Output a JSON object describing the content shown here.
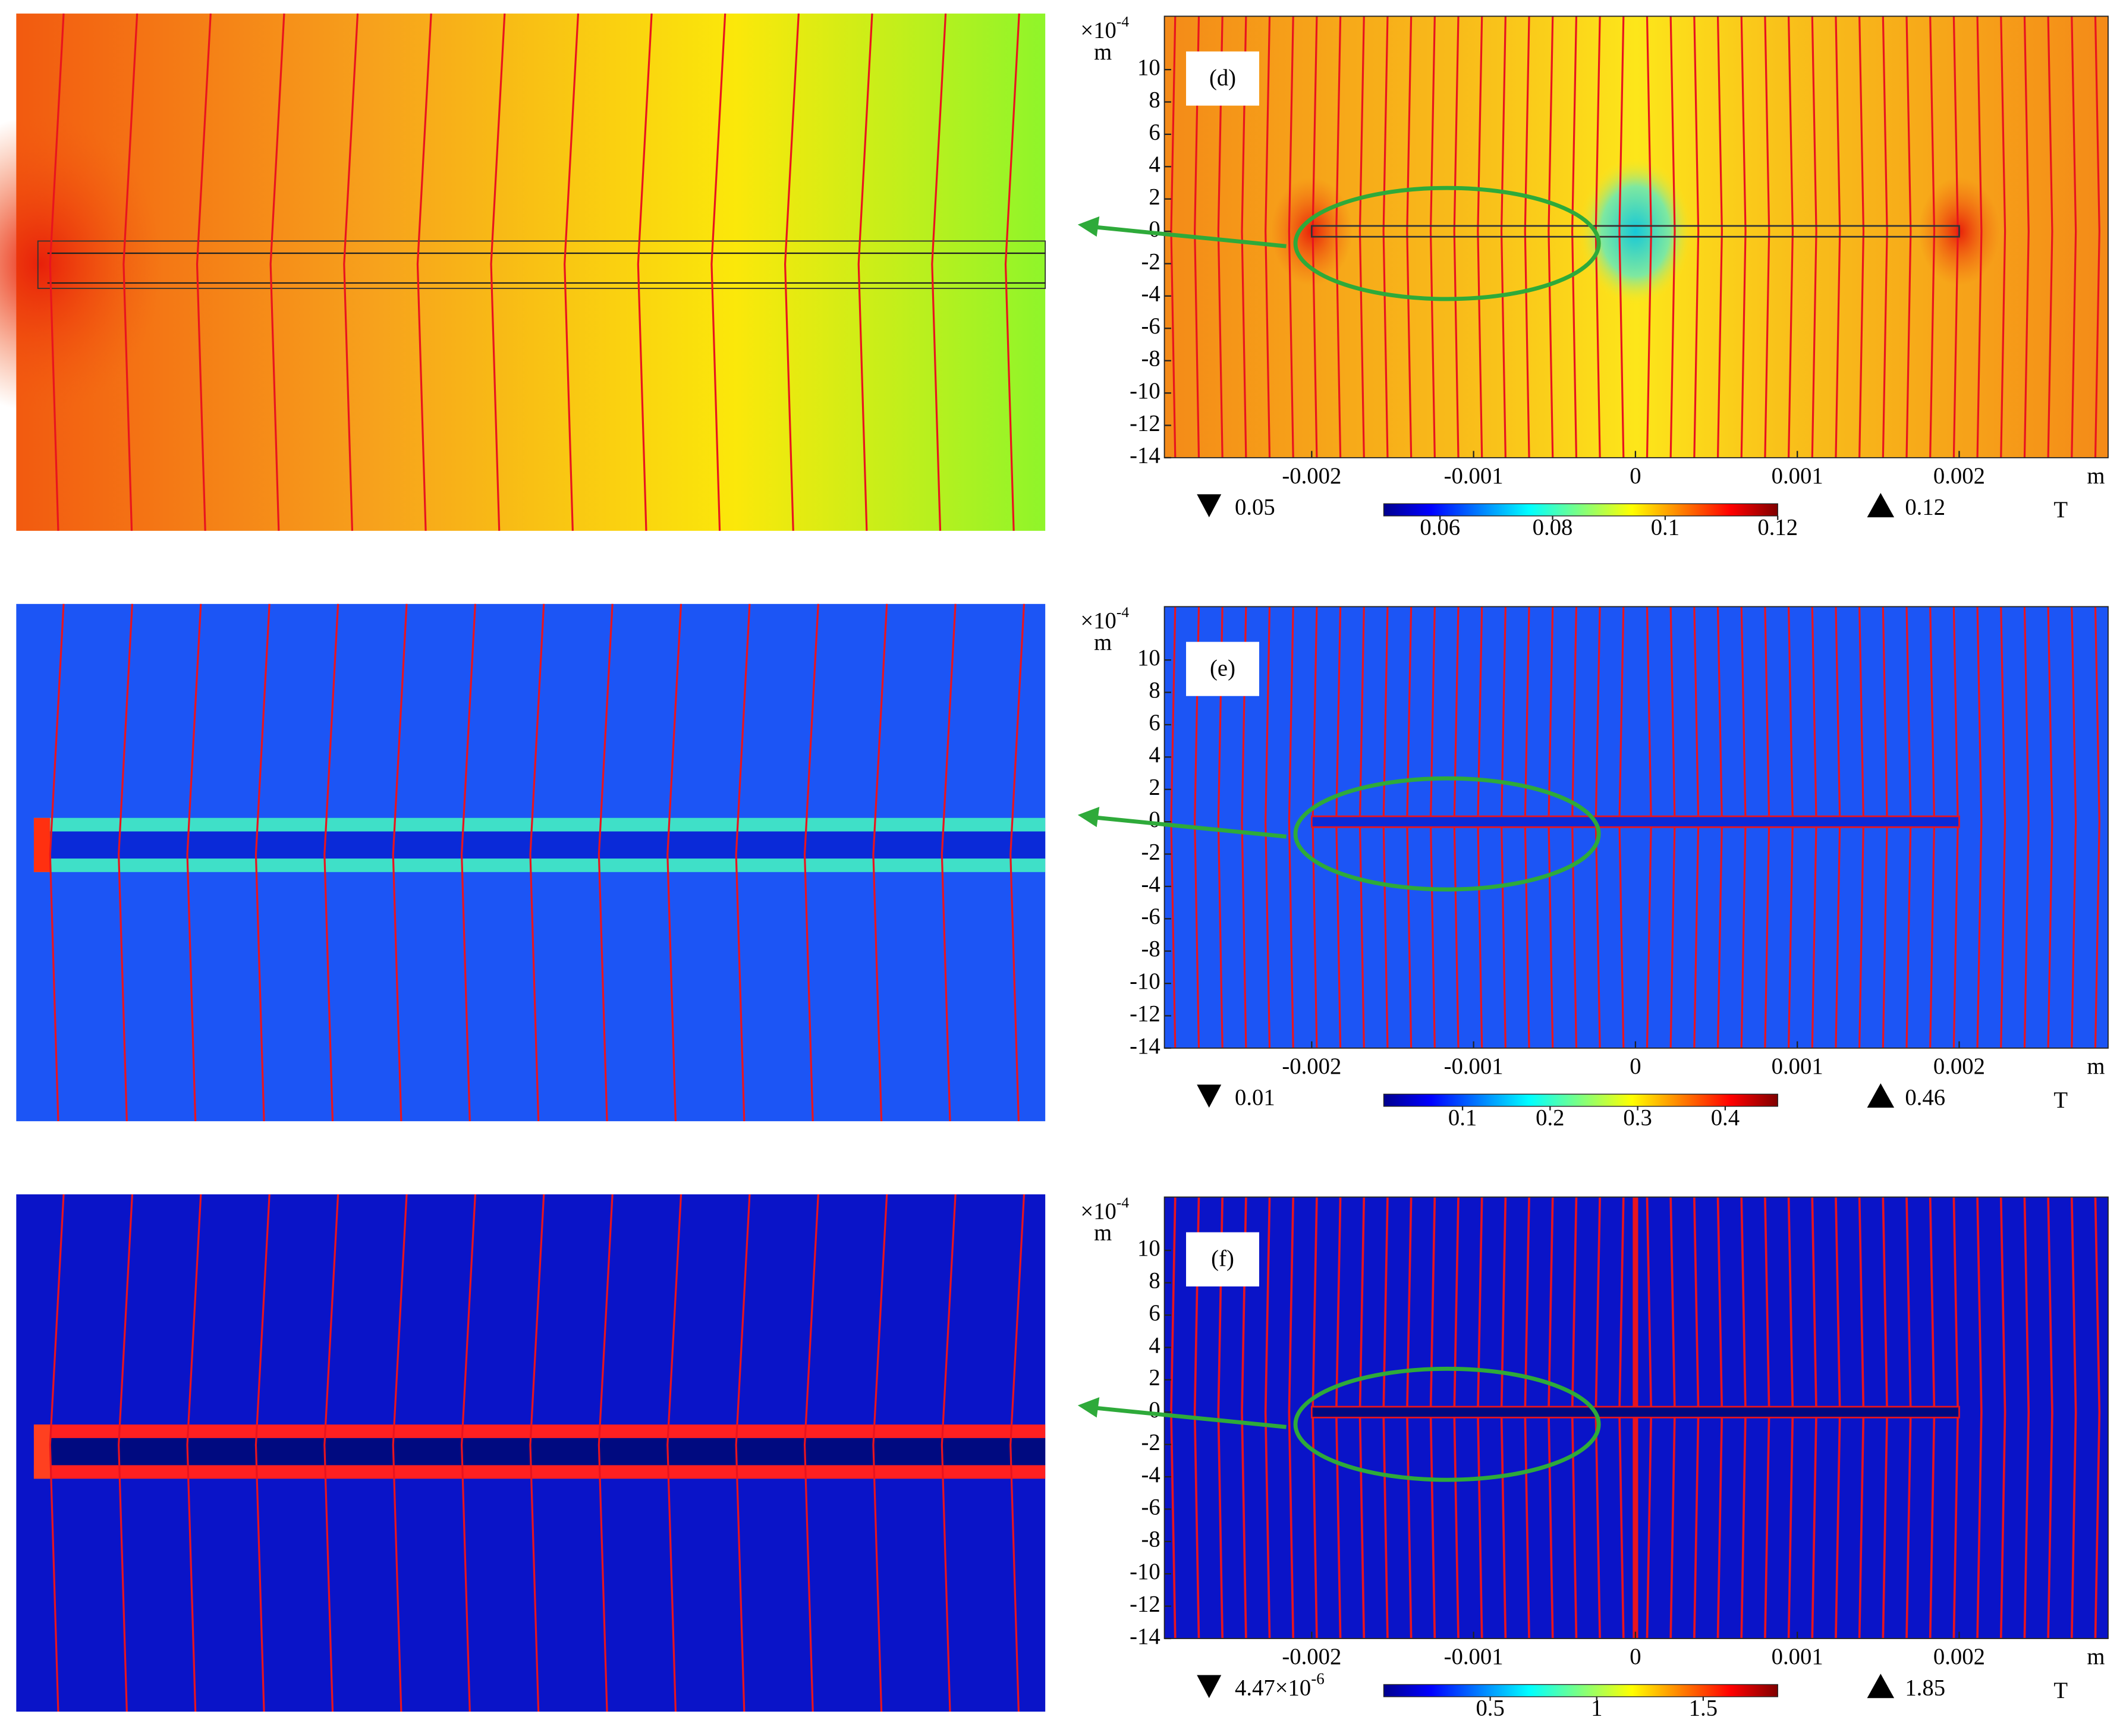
{
  "panels": [
    {
      "label": "(d)",
      "y_exponent": {
        "base": "×10",
        "exponent": "-4"
      },
      "y_unit": "m",
      "x_unit": "m",
      "xlim": [
        -0.00291,
        0.00292
      ],
      "ylim": [
        -14,
        13.3
      ],
      "xticks": [
        -0.002,
        -0.001,
        0,
        0.001,
        0.002
      ],
      "yticks": [
        10,
        8,
        6,
        4,
        2,
        0,
        -2,
        -4,
        -6,
        -8,
        -10,
        -12,
        -14
      ],
      "colorbar": {
        "unit": "T",
        "min": 0.05,
        "max": 0.12,
        "ticks": [
          0.06,
          0.08,
          0.1,
          0.12
        ]
      }
    },
    {
      "label": "(e)",
      "y_exponent": {
        "base": "×10",
        "exponent": "-4"
      },
      "y_unit": "m",
      "x_unit": "m",
      "xlim": [
        -0.00291,
        0.00292
      ],
      "ylim": [
        -14,
        13.3
      ],
      "xticks": [
        -0.002,
        -0.001,
        0,
        0.001,
        0.002
      ],
      "yticks": [
        10,
        8,
        6,
        4,
        2,
        0,
        -2,
        -4,
        -6,
        -8,
        -10,
        -12,
        -14
      ],
      "colorbar": {
        "unit": "T",
        "min": 0.01,
        "max": 0.46,
        "ticks": [
          0.1,
          0.2,
          0.3,
          0.4
        ]
      }
    },
    {
      "label": "(f)",
      "y_exponent": {
        "base": "×10",
        "exponent": "-4"
      },
      "y_unit": "m",
      "x_unit": "m",
      "xlim": [
        -0.00291,
        0.00292
      ],
      "ylim": [
        -14,
        13.3
      ],
      "xticks": [
        -0.002,
        -0.001,
        0,
        0.001,
        0.002
      ],
      "yticks": [
        10,
        8,
        6,
        4,
        2,
        0,
        -2,
        -4,
        -6,
        -8,
        -10,
        -12,
        -14
      ],
      "colorbar": {
        "unit": "T",
        "min": 4.47e-06,
        "min_label": {
          "base": "4.47×10",
          "exponent": "-6"
        },
        "max": 1.85,
        "ticks": [
          0.5,
          1,
          1.5
        ]
      }
    }
  ]
}
